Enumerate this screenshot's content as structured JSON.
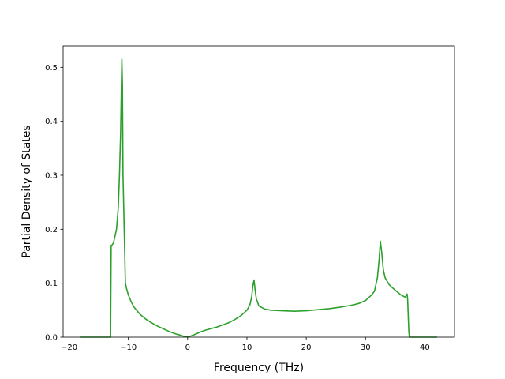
{
  "chart_data": {
    "type": "line",
    "title": "",
    "xlabel": "Frequency (THz)",
    "ylabel": "Partial Density of States",
    "xlim": [
      -21,
      45
    ],
    "ylim": [
      0,
      0.54
    ],
    "xticks": [
      -20,
      -10,
      0,
      10,
      20,
      30,
      40
    ],
    "xtick_labels": [
      "−20",
      "−10",
      "0",
      "10",
      "20",
      "30",
      "40"
    ],
    "yticks": [
      0.0,
      0.1,
      0.2,
      0.3,
      0.4,
      0.5
    ],
    "ytick_labels": [
      "0.0",
      "0.1",
      "0.2",
      "0.3",
      "0.4",
      "0.5"
    ],
    "grid": false,
    "legend": "none",
    "series": [
      {
        "color": "#2ca02c",
        "x": [
          -18.0,
          -13.0,
          -12.9,
          -12.8,
          -12.5,
          -12.0,
          -11.7,
          -11.5,
          -11.3,
          -11.1,
          -11.0,
          -10.9,
          -10.7,
          -10.5,
          -10.3,
          -10.0,
          -9.5,
          -9.0,
          -8.0,
          -7.0,
          -6.0,
          -5.0,
          -4.0,
          -3.0,
          -2.0,
          -1.0,
          -0.5,
          0.0,
          0.5,
          1.0,
          2.0,
          3.0,
          4.0,
          5.0,
          6.0,
          7.0,
          8.0,
          9.0,
          10.0,
          10.5,
          10.8,
          11.0,
          11.2,
          11.4,
          11.6,
          11.8,
          12.0,
          12.5,
          13.0,
          14.0,
          16.0,
          18.0,
          20.0,
          22.0,
          24.0,
          26.0,
          28.0,
          29.0,
          30.0,
          31.0,
          31.5,
          32.0,
          32.3,
          32.5,
          32.7,
          33.0,
          33.3,
          34.0,
          35.0,
          36.0,
          36.7,
          37.0,
          37.1,
          37.2,
          37.3,
          37.4,
          42.0
        ],
        "y": [
          0.0,
          0.0,
          0.17,
          0.17,
          0.175,
          0.2,
          0.24,
          0.3,
          0.38,
          0.515,
          0.47,
          0.3,
          0.2,
          0.1,
          0.09,
          0.078,
          0.065,
          0.055,
          0.042,
          0.033,
          0.026,
          0.02,
          0.015,
          0.01,
          0.006,
          0.003,
          0.001,
          0.001,
          0.002,
          0.004,
          0.009,
          0.013,
          0.016,
          0.019,
          0.023,
          0.027,
          0.033,
          0.04,
          0.05,
          0.06,
          0.075,
          0.095,
          0.106,
          0.085,
          0.07,
          0.065,
          0.058,
          0.055,
          0.052,
          0.05,
          0.049,
          0.048,
          0.049,
          0.051,
          0.053,
          0.056,
          0.06,
          0.063,
          0.068,
          0.078,
          0.085,
          0.11,
          0.145,
          0.178,
          0.16,
          0.125,
          0.11,
          0.097,
          0.087,
          0.078,
          0.074,
          0.08,
          0.07,
          0.04,
          0.01,
          0.0,
          0.0
        ]
      }
    ]
  }
}
